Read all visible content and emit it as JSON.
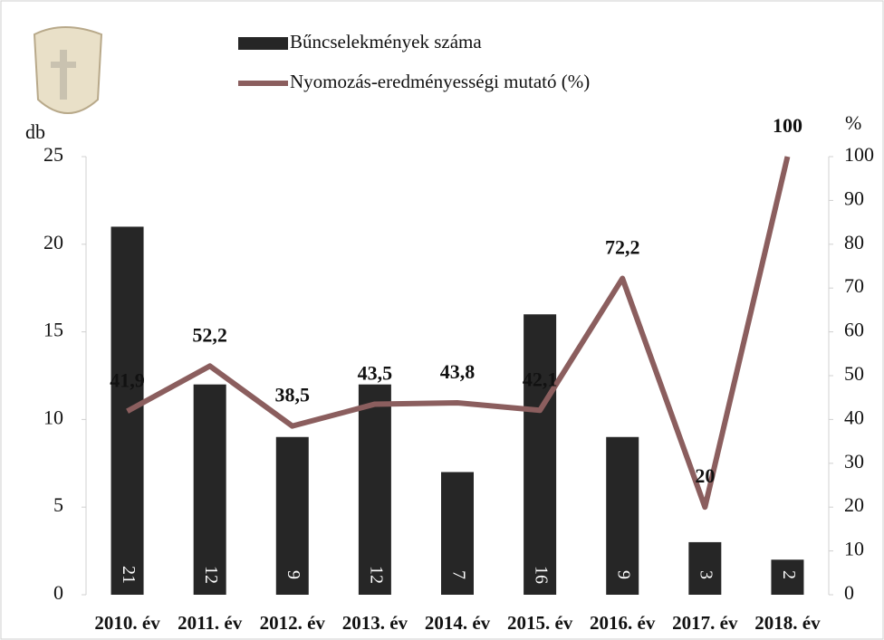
{
  "chart_data": {
    "type": "bar-line",
    "categories": [
      "2010. év",
      "2011. év",
      "2012. év",
      "2013. év",
      "2014. év",
      "2015. év",
      "2016. év",
      "2017. év",
      "2018. év"
    ],
    "series": [
      {
        "name": "Bűncselekmények száma",
        "color": "#262626",
        "values": [
          21,
          12,
          9,
          12,
          7,
          16,
          9,
          3,
          2
        ]
      },
      {
        "name": "Nyomozás-eredményességi mutató (%)",
        "color": "#8b5e5e",
        "axis": "y2",
        "values": [
          41.9,
          52.2,
          38.5,
          43.5,
          43.8,
          42.1,
          72.2,
          20,
          100
        ],
        "value_labels": [
          "41,9",
          "52,2",
          "38,5",
          "43,5",
          "43,8",
          "42,1",
          "72,2",
          "20",
          "100"
        ]
      }
    ],
    "ylabel": "db",
    "y2label": "%",
    "ylim": [
      0,
      25
    ],
    "yticks": [
      0,
      5,
      10,
      15,
      20,
      25
    ],
    "y2lim": [
      0,
      100
    ],
    "y2ticks": [
      0,
      10,
      20,
      30,
      40,
      50,
      60,
      70,
      80,
      90,
      100
    ]
  }
}
